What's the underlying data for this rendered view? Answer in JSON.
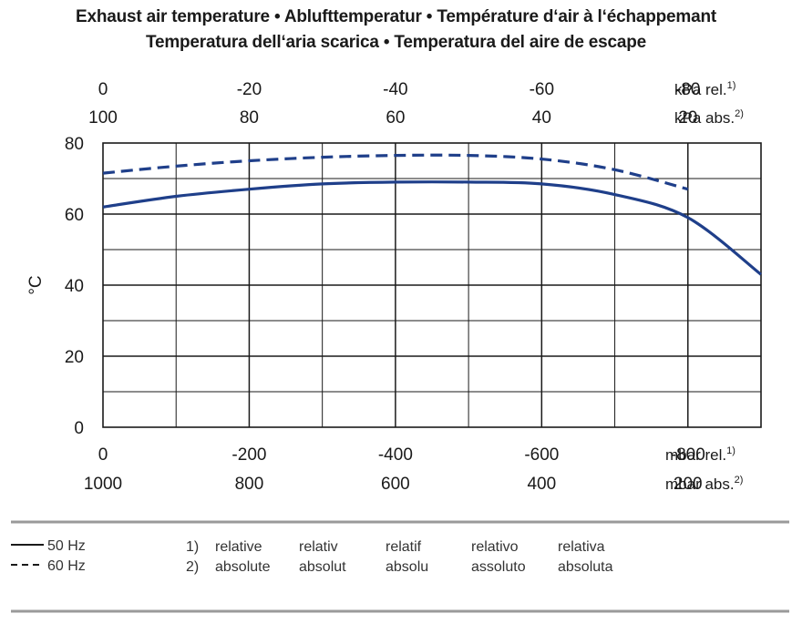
{
  "title_line1": "Exhaust air temperature  •  Ablufttemperatur  •  Température d‘air à l‘échappemant",
  "title_line2": "Temperatura dell‘aria scarica  •  Temperatura del aire de escape",
  "chart_data": {
    "type": "line",
    "ylabel": "°C",
    "ylim": [
      0,
      80
    ],
    "y_ticks": [
      "0",
      "20",
      "40",
      "60",
      "80"
    ],
    "xlim": [
      0,
      -900
    ],
    "x_axes": {
      "bottom_rel": {
        "ticks": [
          0,
          -200,
          -400,
          -600,
          -800
        ],
        "labels": [
          "0",
          "-200",
          "-400",
          "-600",
          "-800"
        ],
        "unit": "mbar rel.",
        "note": "1)"
      },
      "bottom_abs": {
        "labels": [
          "1000",
          "800",
          "600",
          "400",
          "200"
        ],
        "unit": "mbar abs.",
        "note": "2)"
      },
      "top_rel": {
        "labels": [
          "0",
          "-20",
          "-40",
          "-60",
          "-80"
        ],
        "unit": "kPa rel.",
        "note": "1)"
      },
      "top_abs": {
        "labels": [
          "100",
          "80",
          "60",
          "40",
          "20"
        ],
        "unit": "kPa abs.",
        "note": "2)"
      }
    },
    "grid": true,
    "series": [
      {
        "name": "50 Hz",
        "style": "solid",
        "color": "#1f3f8a",
        "x": [
          0,
          -100,
          -200,
          -300,
          -400,
          -500,
          -600,
          -700,
          -800,
          -900
        ],
        "y": [
          62,
          65,
          67,
          68.5,
          69,
          69,
          68.5,
          65.5,
          59,
          43
        ]
      },
      {
        "name": "60 Hz",
        "style": "dashed",
        "color": "#1f3f8a",
        "x": [
          0,
          -100,
          -200,
          -300,
          -400,
          -500,
          -600,
          -700,
          -800
        ],
        "y": [
          71.5,
          73.5,
          75,
          76,
          76.5,
          76.5,
          75.5,
          72.5,
          67
        ]
      }
    ]
  },
  "legend": {
    "items": [
      {
        "label": "50 Hz",
        "style": "solid"
      },
      {
        "label": "60 Hz",
        "style": "dashed"
      }
    ]
  },
  "notes": [
    {
      "marker": "1)",
      "words": [
        "relative",
        "relativ",
        "relatif",
        "relativo",
        "relativa"
      ]
    },
    {
      "marker": "2)",
      "words": [
        "absolute",
        "absolut",
        "absolu",
        "assoluto",
        "absoluta"
      ]
    }
  ],
  "colors": {
    "line": "#1f3f8a",
    "grid": "#1a1a1a",
    "separator": "#9a9a9a"
  }
}
